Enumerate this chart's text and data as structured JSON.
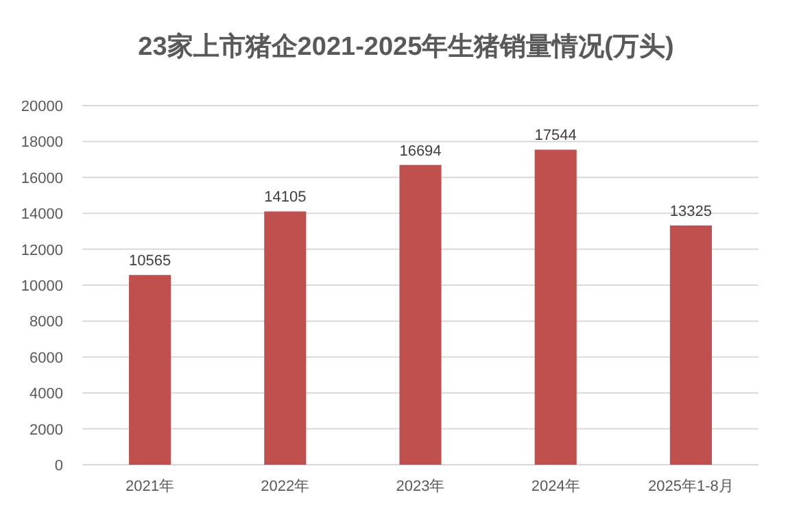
{
  "chart_data": {
    "type": "bar",
    "title": "23家上市猪企2021-2025年生猪销量情况(万头)",
    "categories": [
      "2021年",
      "2022年",
      "2023年",
      "2024年",
      "2025年1-8月"
    ],
    "values": [
      10565,
      14105,
      16694,
      17544,
      13325
    ],
    "color": "#c0504d",
    "ylim": [
      0,
      20000
    ],
    "yticks": [
      0,
      2000,
      4000,
      6000,
      8000,
      10000,
      12000,
      14000,
      16000,
      18000,
      20000
    ],
    "grid": "y",
    "data_labels": true
  }
}
